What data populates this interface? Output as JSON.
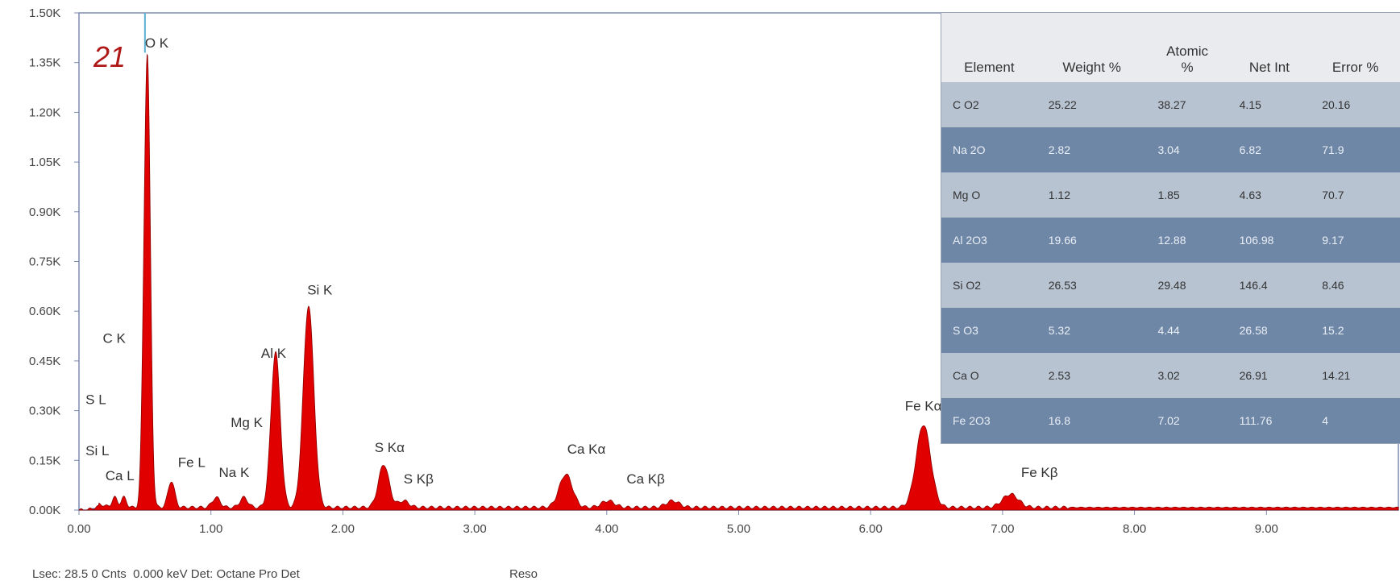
{
  "panel_number": "21",
  "status": {
    "left": "Lsec: 28.5 0 Cnts  0.000 keV Det: Octane Pro Det",
    "right": "Reso"
  },
  "colors": {
    "peak": "#e00000",
    "axis": "#7b8cb3",
    "grid": "#ccd2e3"
  },
  "table": {
    "headers": [
      "Element",
      "Weight %",
      "Atomic\n%",
      "Net Int",
      "Error %"
    ],
    "rows": [
      [
        "C O2",
        "25.22",
        "38.27",
        "4.15",
        "20.16"
      ],
      [
        "Na 2O",
        "2.82",
        "3.04",
        "6.82",
        "71.9"
      ],
      [
        "Mg O",
        "1.12",
        "1.85",
        "4.63",
        "70.7"
      ],
      [
        "Al 2O3",
        "19.66",
        "12.88",
        "106.98",
        "9.17"
      ],
      [
        "Si O2",
        "26.53",
        "29.48",
        "146.4",
        "8.46"
      ],
      [
        "S O3",
        "5.32",
        "4.44",
        "26.58",
        "15.2"
      ],
      [
        "Ca O",
        "2.53",
        "3.02",
        "26.91",
        "14.21"
      ],
      [
        "Fe 2O3",
        "16.8",
        "7.02",
        "111.76",
        "4"
      ]
    ]
  },
  "chart_data": {
    "type": "area",
    "xlim": [
      0,
      10
    ],
    "ylim": [
      0,
      1.5
    ],
    "x_ticks": [
      {
        "value": 0,
        "label": "0.00"
      },
      {
        "value": 1,
        "label": "1.00"
      },
      {
        "value": 2,
        "label": "2.00"
      },
      {
        "value": 3,
        "label": "3.00"
      },
      {
        "value": 4,
        "label": "4.00"
      },
      {
        "value": 5,
        "label": "5.00"
      },
      {
        "value": 6,
        "label": "6.00"
      },
      {
        "value": 7,
        "label": "7.00"
      },
      {
        "value": 8,
        "label": "8.00"
      },
      {
        "value": 9,
        "label": "9.00"
      }
    ],
    "y_ticks": [
      {
        "value": 0,
        "label": "0.00K"
      },
      {
        "value": 0.15,
        "label": "0.15K"
      },
      {
        "value": 0.3,
        "label": "0.30K"
      },
      {
        "value": 0.45,
        "label": "0.45K"
      },
      {
        "value": 0.6,
        "label": "0.60K"
      },
      {
        "value": 0.75,
        "label": "0.75K"
      },
      {
        "value": 0.9,
        "label": "0.90K"
      },
      {
        "value": 1.05,
        "label": "1.05K"
      },
      {
        "value": 1.2,
        "label": "1.20K"
      },
      {
        "value": 1.35,
        "label": "1.35K"
      },
      {
        "value": 1.5,
        "label": "1.50K"
      }
    ],
    "peaks": [
      {
        "x": 0.15,
        "height": 0.01,
        "width": 0.04
      },
      {
        "x": 0.27,
        "height": 0.03,
        "width": 0.02
      },
      {
        "x": 0.34,
        "height": 0.03,
        "width": 0.02
      },
      {
        "x": 0.52,
        "height": 1.3,
        "width": 0.022
      },
      {
        "x": 0.49,
        "height": 0.25,
        "width": 0.018
      },
      {
        "x": 0.7,
        "height": 0.08,
        "width": 0.025
      },
      {
        "x": 1.04,
        "height": 0.03,
        "width": 0.03
      },
      {
        "x": 1.25,
        "height": 0.03,
        "width": 0.03
      },
      {
        "x": 1.49,
        "height": 0.47,
        "width": 0.035
      },
      {
        "x": 1.74,
        "height": 0.61,
        "width": 0.04
      },
      {
        "x": 2.31,
        "height": 0.13,
        "width": 0.04
      },
      {
        "x": 2.46,
        "height": 0.02,
        "width": 0.04
      },
      {
        "x": 3.69,
        "height": 0.1,
        "width": 0.05
      },
      {
        "x": 4.01,
        "height": 0.02,
        "width": 0.05
      },
      {
        "x": 4.5,
        "height": 0.02,
        "width": 0.05
      },
      {
        "x": 6.4,
        "height": 0.25,
        "width": 0.055
      },
      {
        "x": 7.06,
        "height": 0.04,
        "width": 0.06
      }
    ],
    "background": 0.008,
    "peak_labels": [
      {
        "text": "O  K",
        "x": 0.5,
        "y": 1.395
      },
      {
        "text": "C  K",
        "x": 0.18,
        "y": 0.505
      },
      {
        "text": "S  L",
        "x": 0.05,
        "y": 0.32
      },
      {
        "text": "Si L",
        "x": 0.05,
        "y": 0.165
      },
      {
        "text": "Ca L",
        "x": 0.2,
        "y": 0.09
      },
      {
        "text": "Fe L",
        "x": 0.75,
        "y": 0.13
      },
      {
        "text": "Na K",
        "x": 1.06,
        "y": 0.1
      },
      {
        "text": "Mg K",
        "x": 1.15,
        "y": 0.25
      },
      {
        "text": "Al K",
        "x": 1.38,
        "y": 0.46
      },
      {
        "text": "Si K",
        "x": 1.73,
        "y": 0.65
      },
      {
        "text": "S  Kα",
        "x": 2.24,
        "y": 0.175
      },
      {
        "text": "S  Kβ",
        "x": 2.46,
        "y": 0.08
      },
      {
        "text": "Ca Kα",
        "x": 3.7,
        "y": 0.17
      },
      {
        "text": "Ca Kβ",
        "x": 4.15,
        "y": 0.08
      },
      {
        "text": "Fe Kα",
        "x": 6.26,
        "y": 0.3
      },
      {
        "text": "Fe Kβ",
        "x": 7.14,
        "y": 0.1
      }
    ]
  }
}
